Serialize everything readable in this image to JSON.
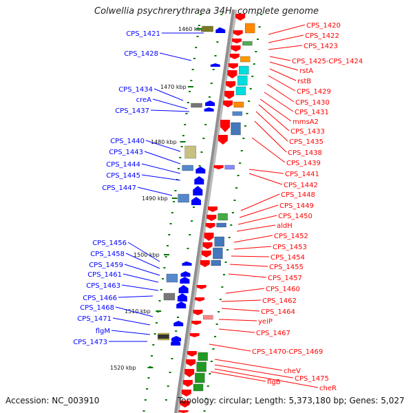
{
  "title": "Colwellia psychrerythraea 34H, complete genome",
  "footer": {
    "accession": "Accession: NC_003910",
    "summary": "Topology: circular; Length: 5,373,180 bp; Genes: 5,027"
  },
  "colors": {
    "forward": "#ff0000",
    "reverse": "#0000ff",
    "backbone": "#909090",
    "tick": "#007700"
  },
  "scale_ticks": [
    "1460 kbp",
    "1470 kbp",
    "1480 kbp",
    "1490 kbp",
    "1500 kbp",
    "1510 kbp",
    "1520 kbp"
  ],
  "left_labels": [
    "CPS_1421",
    "CPS_1428",
    "CPS_1434",
    "creA",
    "CPS_1437",
    "CPS_1440",
    "CPS_1443",
    "CPS_1444",
    "CPS_1445",
    "CPS_1447",
    "CPS_1456",
    "CPS_1458",
    "CPS_1459",
    "CPS_1461",
    "CPS_1463",
    "CPS_1466",
    "CPS_1468",
    "CPS_1471",
    "flgM",
    "CPS_1473"
  ],
  "right_labels": [
    "CPS_1420",
    "CPS_1422",
    "CPS_1423",
    "CPS_1425-CPS_1424",
    "rstA",
    "rstB",
    "CPS_1429",
    "CPS_1430",
    "CPS_1431",
    "mmsA2",
    "CPS_1433",
    "CPS_1435",
    "CPS_1438",
    "CPS_1439",
    "CPS_1441",
    "CPS_1442",
    "CPS_1448",
    "CPS_1449",
    "CPS_1450",
    "aldH",
    "CPS_1452",
    "CPS_1453",
    "CPS_1454",
    "CPS_1455",
    "CPS_1457",
    "CPS_1460",
    "CPS_1462",
    "CPS_1464",
    "yeiP",
    "CPS_1467",
    "CPS_1470-CPS_1469",
    "cheV",
    "CPS_1475",
    "flgB",
    "cheR"
  ]
}
